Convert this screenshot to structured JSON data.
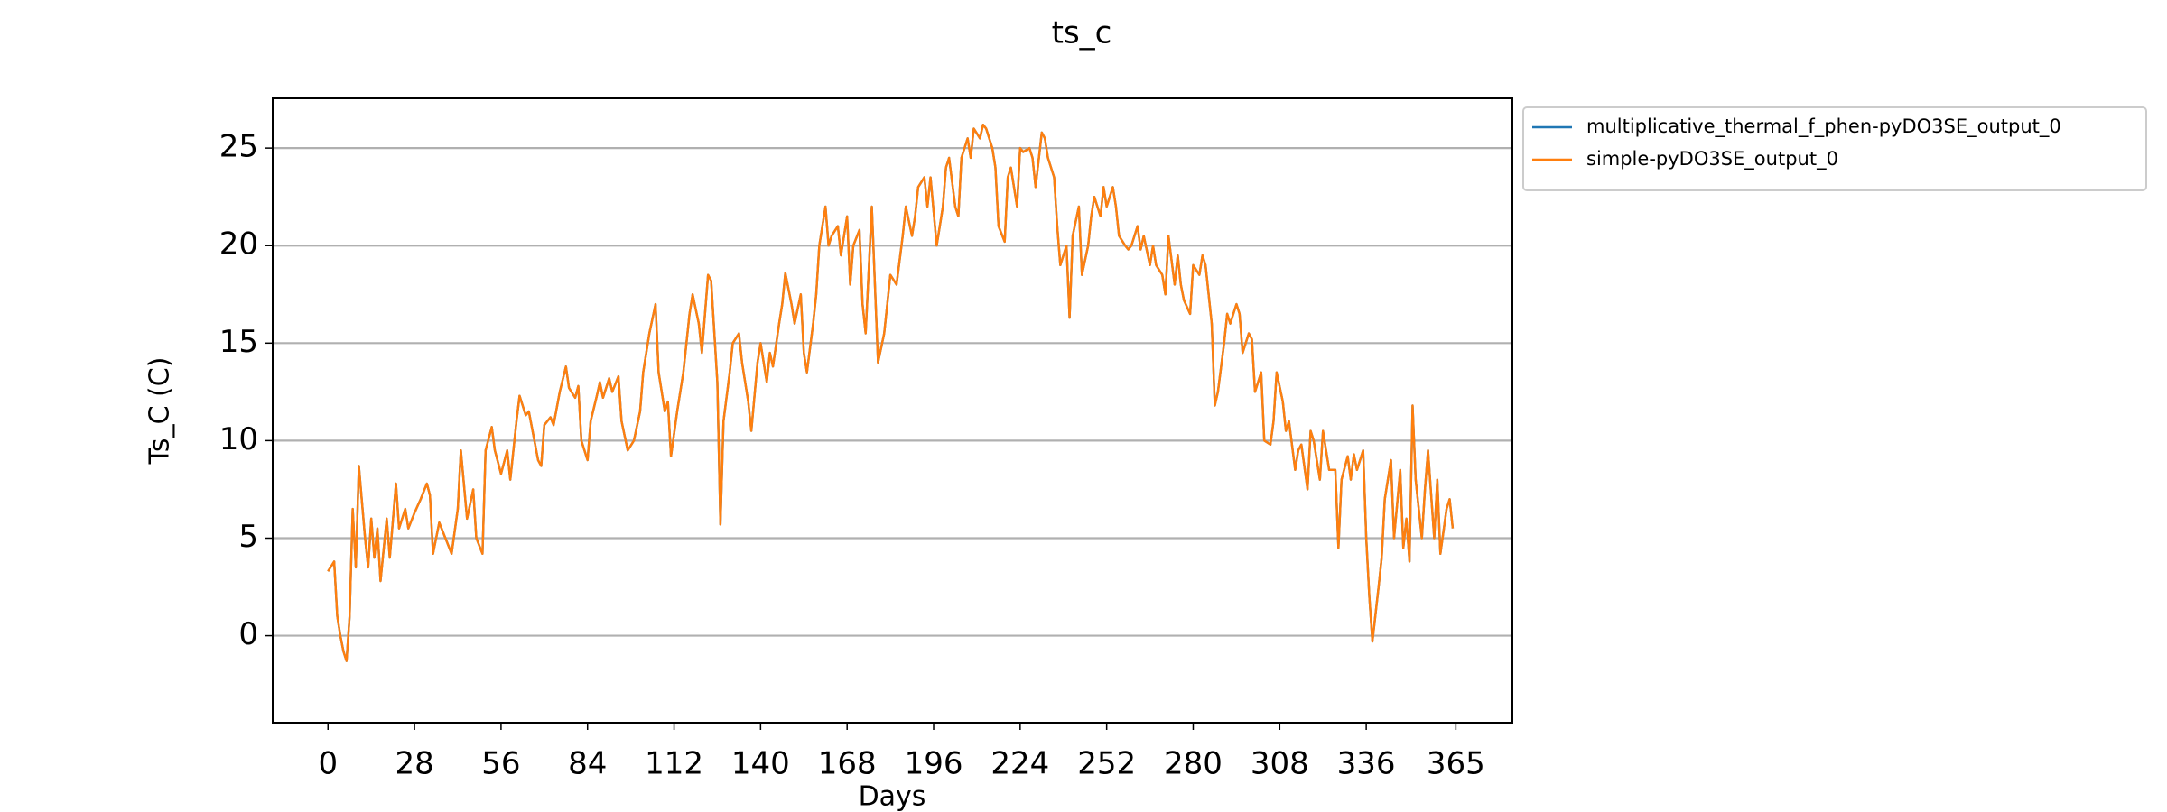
{
  "chart_data": {
    "type": "line",
    "title": "ts_c",
    "x_label": "Days",
    "y_label": "Ts_C (C)",
    "x": [
      0,
      2,
      3,
      4,
      5,
      6,
      7,
      8,
      9,
      10,
      12,
      13,
      14,
      15,
      16,
      17,
      19,
      20,
      22,
      23,
      25,
      26,
      28,
      30,
      32,
      33,
      34,
      36,
      38,
      40,
      42,
      43,
      45,
      47,
      48,
      50,
      51,
      53,
      54,
      56,
      58,
      59,
      61,
      62,
      64,
      65,
      68,
      69,
      70,
      72,
      73,
      75,
      77,
      78,
      80,
      81,
      82,
      84,
      85,
      87,
      88,
      89,
      91,
      92,
      94,
      95,
      97,
      99,
      101,
      102,
      104,
      106,
      107,
      109,
      110,
      111,
      113,
      115,
      117,
      118,
      120,
      121,
      123,
      124,
      126,
      127,
      128,
      130,
      131,
      133,
      134,
      136,
      137,
      139,
      140,
      142,
      143,
      144,
      146,
      147,
      148,
      150,
      151,
      153,
      154,
      155,
      157,
      158,
      159,
      161,
      162,
      163,
      165,
      166,
      168,
      169,
      170,
      172,
      173,
      174,
      176,
      177,
      178,
      180,
      181,
      182,
      184,
      186,
      187,
      189,
      190,
      191,
      193,
      194,
      195,
      197,
      199,
      200,
      201,
      203,
      204,
      205,
      207,
      208,
      209,
      211,
      212,
      213,
      215,
      216,
      217,
      219,
      220,
      221,
      223,
      224,
      225,
      227,
      228,
      229,
      231,
      232,
      233,
      235,
      236,
      237,
      239,
      240,
      241,
      243,
      244,
      246,
      247,
      248,
      250,
      251,
      252,
      254,
      255,
      256,
      258,
      259,
      260,
      262,
      263,
      264,
      266,
      267,
      268,
      270,
      271,
      272,
      274,
      275,
      276,
      277,
      279,
      280,
      282,
      283,
      284,
      286,
      287,
      288,
      290,
      291,
      292,
      294,
      295,
      296,
      298,
      299,
      300,
      302,
      303,
      305,
      306,
      307,
      309,
      310,
      311,
      313,
      314,
      315,
      317,
      318,
      319,
      321,
      322,
      323,
      324,
      326,
      327,
      328,
      330,
      331,
      332,
      333,
      335,
      336,
      337,
      338,
      340,
      341,
      342,
      344,
      345,
      347,
      348,
      349,
      350,
      351,
      352,
      354,
      355,
      356,
      358,
      359,
      360,
      362,
      363,
      364
    ],
    "series": [
      {
        "name": "multiplicative_thermal_f_phen-pyDO3SE_output_0",
        "color": "#1f77b4",
        "values": [
          3.3,
          3.8,
          1.0,
          0,
          -0.8,
          -1.3,
          1,
          6.5,
          3.5,
          8.7,
          5,
          3.5,
          6,
          4,
          5.5,
          2.8,
          6,
          4,
          7.8,
          5.5,
          6.5,
          5.5,
          6.3,
          7.0,
          7.8,
          7.2,
          4.2,
          5.8,
          5.0,
          4.2,
          6.5,
          9.5,
          6,
          7.5,
          5,
          4.2,
          9.5,
          10.7,
          9.5,
          8.3,
          9.5,
          8,
          11,
          12.3,
          11.3,
          11.5,
          9.0,
          8.7,
          10.8,
          11.2,
          10.8,
          12.5,
          13.8,
          12.7,
          12.2,
          12.8,
          10,
          9,
          11,
          12.3,
          13.0,
          12.2,
          13.2,
          12.5,
          13.3,
          11,
          9.5,
          10,
          11.5,
          13.5,
          15.5,
          17.0,
          13.5,
          11.5,
          12,
          9.2,
          11.5,
          13.5,
          16.5,
          17.5,
          16,
          14.5,
          18.5,
          18.2,
          13,
          5.7,
          11,
          13.5,
          15,
          15.5,
          14,
          12,
          10.5,
          14,
          15,
          13,
          14.5,
          13.8,
          16,
          17,
          18.6,
          17,
          16,
          17.5,
          14.5,
          13.5,
          16,
          17.5,
          20,
          22,
          20,
          20.5,
          21,
          19.5,
          21.5,
          18,
          20,
          20.8,
          17,
          15.5,
          22,
          18,
          14,
          15.5,
          17,
          18.5,
          18,
          20.5,
          22,
          20.5,
          21.5,
          23,
          23.5,
          22,
          23.5,
          20,
          22,
          24,
          24.5,
          22,
          21.5,
          24.5,
          25.5,
          24.5,
          26,
          25.5,
          26.2,
          26,
          25,
          24,
          21,
          20.2,
          23.5,
          24,
          22,
          25,
          24.8,
          25,
          24.5,
          23,
          25.8,
          25.5,
          24.5,
          23.5,
          21,
          19,
          20,
          16.3,
          20.5,
          22,
          18.5,
          20,
          21.5,
          22.5,
          21.5,
          23,
          22,
          23,
          22,
          20.5,
          20,
          19.8,
          20,
          21,
          19.8,
          20.5,
          19,
          20,
          19,
          18.5,
          17.5,
          20.5,
          18,
          19.5,
          18,
          17.2,
          16.5,
          19,
          18.5,
          19.5,
          19,
          16,
          11.8,
          12.5,
          15,
          16.5,
          16,
          17,
          16.5,
          14.5,
          15.5,
          15.2,
          12.5,
          13.5,
          10,
          9.8,
          11,
          13.5,
          12,
          10.5,
          11,
          8.5,
          9.5,
          9.8,
          7.5,
          10.5,
          10,
          8,
          10.5,
          9.5,
          8.5,
          8.5,
          4.5,
          8,
          9.2,
          8,
          9.3,
          8.5,
          9.5,
          5,
          2,
          -0.3,
          2.5,
          4,
          7,
          9,
          5,
          8.5,
          4.5,
          6,
          3.8,
          11.8,
          8,
          5,
          7.5,
          9.5,
          5,
          8,
          4.2,
          6.5,
          7,
          5.5
        ]
      },
      {
        "name": "simple-pyDO3SE_output_0",
        "color": "#ff7f0e",
        "values": [
          3.3,
          3.8,
          1.0,
          0,
          -0.8,
          -1.3,
          1,
          6.5,
          3.5,
          8.7,
          5,
          3.5,
          6,
          4,
          5.5,
          2.8,
          6,
          4,
          7.8,
          5.5,
          6.5,
          5.5,
          6.3,
          7.0,
          7.8,
          7.2,
          4.2,
          5.8,
          5.0,
          4.2,
          6.5,
          9.5,
          6,
          7.5,
          5,
          4.2,
          9.5,
          10.7,
          9.5,
          8.3,
          9.5,
          8,
          11,
          12.3,
          11.3,
          11.5,
          9.0,
          8.7,
          10.8,
          11.2,
          10.8,
          12.5,
          13.8,
          12.7,
          12.2,
          12.8,
          10,
          9,
          11,
          12.3,
          13.0,
          12.2,
          13.2,
          12.5,
          13.3,
          11,
          9.5,
          10,
          11.5,
          13.5,
          15.5,
          17.0,
          13.5,
          11.5,
          12,
          9.2,
          11.5,
          13.5,
          16.5,
          17.5,
          16,
          14.5,
          18.5,
          18.2,
          13,
          5.7,
          11,
          13.5,
          15,
          15.5,
          14,
          12,
          10.5,
          14,
          15,
          13,
          14.5,
          13.8,
          16,
          17,
          18.6,
          17,
          16,
          17.5,
          14.5,
          13.5,
          16,
          17.5,
          20,
          22,
          20,
          20.5,
          21,
          19.5,
          21.5,
          18,
          20,
          20.8,
          17,
          15.5,
          22,
          18,
          14,
          15.5,
          17,
          18.5,
          18,
          20.5,
          22,
          20.5,
          21.5,
          23,
          23.5,
          22,
          23.5,
          20,
          22,
          24,
          24.5,
          22,
          21.5,
          24.5,
          25.5,
          24.5,
          26,
          25.5,
          26.2,
          26,
          25,
          24,
          21,
          20.2,
          23.5,
          24,
          22,
          25,
          24.8,
          25,
          24.5,
          23,
          25.8,
          25.5,
          24.5,
          23.5,
          21,
          19,
          20,
          16.3,
          20.5,
          22,
          18.5,
          20,
          21.5,
          22.5,
          21.5,
          23,
          22,
          23,
          22,
          20.5,
          20,
          19.8,
          20,
          21,
          19.8,
          20.5,
          19,
          20,
          19,
          18.5,
          17.5,
          20.5,
          18,
          19.5,
          18,
          17.2,
          16.5,
          19,
          18.5,
          19.5,
          19,
          16,
          11.8,
          12.5,
          15,
          16.5,
          16,
          17,
          16.5,
          14.5,
          15.5,
          15.2,
          12.5,
          13.5,
          10,
          9.8,
          11,
          13.5,
          12,
          10.5,
          11,
          8.5,
          9.5,
          9.8,
          7.5,
          10.5,
          10,
          8,
          10.5,
          9.5,
          8.5,
          8.5,
          4.5,
          8,
          9.2,
          8,
          9.3,
          8.5,
          9.5,
          5,
          2,
          -0.3,
          2.5,
          4,
          7,
          9,
          5,
          8.5,
          4.5,
          6,
          3.8,
          11.8,
          8,
          5,
          7.5,
          9.5,
          5,
          8,
          4.2,
          6.5,
          7,
          5.5
        ]
      }
    ],
    "xlim": [
      -17.9,
      383.3
    ],
    "ylim": [
      -4.46,
      27.55
    ],
    "xticks": [
      0,
      28,
      56,
      84,
      112,
      140,
      168,
      196,
      224,
      252,
      280,
      308,
      336,
      365
    ],
    "yticks": [
      0,
      5,
      10,
      15,
      20,
      25
    ],
    "grid": "y",
    "legend": "outside-right"
  }
}
